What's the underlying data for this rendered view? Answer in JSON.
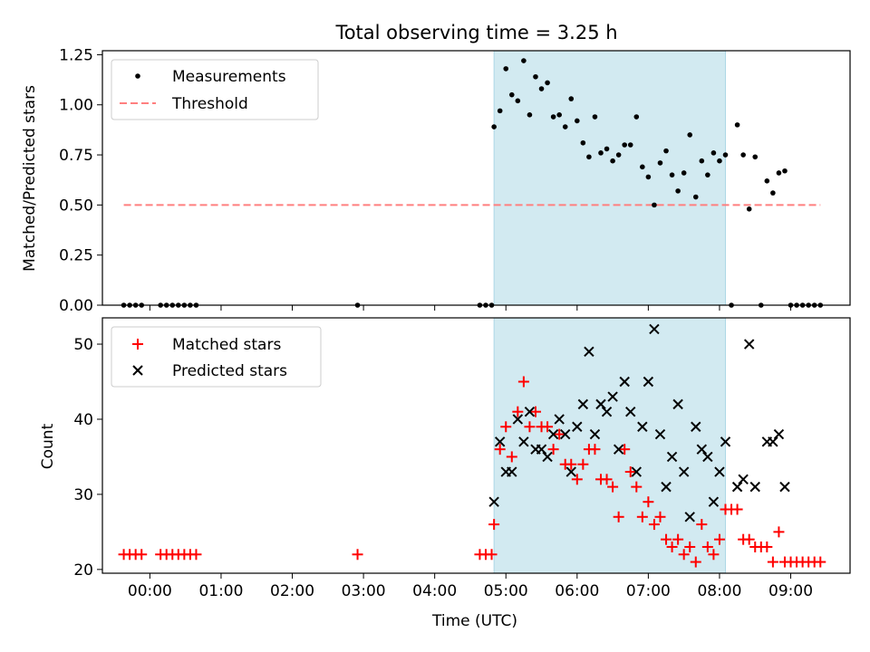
{
  "chart_data": [
    {
      "type": "scatter",
      "title": "Total observing time = 3.25 h",
      "xlabel": "",
      "ylabel": "Matched/Predicted stars",
      "xlim": [
        "23:20",
        "09:50"
      ],
      "ylim": [
        0,
        1.27
      ],
      "y_ticks": [
        "0.00",
        "0.25",
        "0.50",
        "0.75",
        "1.00",
        "1.25"
      ],
      "shaded_region": {
        "from": "04:50",
        "to": "08:05",
        "color": "#add8e6"
      },
      "legend": {
        "placement": "top-left",
        "entries": [
          "Measurements",
          "Threshold"
        ]
      },
      "series": [
        {
          "name": "Measurements",
          "marker": "dot",
          "color": "#000000",
          "points": [
            [
              "23:38",
              0
            ],
            [
              "23:43",
              0
            ],
            [
              "23:48",
              0
            ],
            [
              "23:53",
              0
            ],
            [
              "00:09",
              0
            ],
            [
              "00:14",
              0
            ],
            [
              "00:19",
              0
            ],
            [
              "00:24",
              0
            ],
            [
              "00:29",
              0
            ],
            [
              "00:34",
              0
            ],
            [
              "00:39",
              0
            ],
            [
              "02:55",
              0
            ],
            [
              "04:38",
              0
            ],
            [
              "04:43",
              0
            ],
            [
              "04:48",
              0
            ],
            [
              "04:50",
              0.89
            ],
            [
              "04:55",
              0.97
            ],
            [
              "05:00",
              1.18
            ],
            [
              "05:05",
              1.05
            ],
            [
              "05:10",
              1.02
            ],
            [
              "05:15",
              1.22
            ],
            [
              "05:20",
              0.95
            ],
            [
              "05:25",
              1.14
            ],
            [
              "05:30",
              1.08
            ],
            [
              "05:35",
              1.11
            ],
            [
              "05:40",
              0.94
            ],
            [
              "05:45",
              0.95
            ],
            [
              "05:50",
              0.89
            ],
            [
              "05:55",
              1.03
            ],
            [
              "06:00",
              0.92
            ],
            [
              "06:05",
              0.81
            ],
            [
              "06:10",
              0.74
            ],
            [
              "06:15",
              0.94
            ],
            [
              "06:20",
              0.76
            ],
            [
              "06:25",
              0.78
            ],
            [
              "06:30",
              0.72
            ],
            [
              "06:35",
              0.75
            ],
            [
              "06:40",
              0.8
            ],
            [
              "06:45",
              0.8
            ],
            [
              "06:50",
              0.94
            ],
            [
              "06:55",
              0.69
            ],
            [
              "07:00",
              0.64
            ],
            [
              "07:05",
              0.5
            ],
            [
              "07:10",
              0.71
            ],
            [
              "07:15",
              0.77
            ],
            [
              "07:20",
              0.65
            ],
            [
              "07:25",
              0.57
            ],
            [
              "07:30",
              0.66
            ],
            [
              "07:35",
              0.85
            ],
            [
              "07:40",
              0.54
            ],
            [
              "07:45",
              0.72
            ],
            [
              "07:50",
              0.65
            ],
            [
              "07:55",
              0.76
            ],
            [
              "08:00",
              0.72
            ],
            [
              "08:05",
              0.75
            ],
            [
              "08:10",
              0
            ],
            [
              "08:15",
              0.9
            ],
            [
              "08:20",
              0.75
            ],
            [
              "08:25",
              0.48
            ],
            [
              "08:30",
              0.74
            ],
            [
              "08:35",
              0
            ],
            [
              "08:40",
              0.62
            ],
            [
              "08:45",
              0.56
            ],
            [
              "08:50",
              0.66
            ],
            [
              "08:55",
              0.67
            ],
            [
              "09:00",
              0
            ],
            [
              "09:05",
              0
            ],
            [
              "09:10",
              0
            ],
            [
              "09:15",
              0
            ],
            [
              "09:20",
              0
            ],
            [
              "09:25",
              0
            ]
          ]
        },
        {
          "name": "Threshold",
          "marker": "dashed-line",
          "color": "#ff7f7f",
          "points": [
            [
              "23:38",
              0.5
            ],
            [
              "09:25",
              0.5
            ]
          ]
        }
      ]
    },
    {
      "type": "scatter",
      "title": "",
      "xlabel": "Time (UTC)",
      "ylabel": "Count",
      "xlim": [
        "23:20",
        "09:50"
      ],
      "ylim": [
        19.5,
        53.5
      ],
      "y_ticks": [
        "20",
        "30",
        "40",
        "50"
      ],
      "x_ticks": [
        "00:00",
        "01:00",
        "02:00",
        "03:00",
        "04:00",
        "05:00",
        "06:00",
        "07:00",
        "08:00",
        "09:00"
      ],
      "shaded_region": {
        "from": "04:50",
        "to": "08:05",
        "color": "#add8e6"
      },
      "legend": {
        "placement": "top-left",
        "entries": [
          "Matched stars",
          "Predicted stars"
        ]
      },
      "series": [
        {
          "name": "Matched stars",
          "marker": "plus",
          "color": "#ff0000",
          "points": [
            [
              "23:38",
              22
            ],
            [
              "23:43",
              22
            ],
            [
              "23:48",
              22
            ],
            [
              "23:53",
              22
            ],
            [
              "00:09",
              22
            ],
            [
              "00:14",
              22
            ],
            [
              "00:19",
              22
            ],
            [
              "00:24",
              22
            ],
            [
              "00:29",
              22
            ],
            [
              "00:34",
              22
            ],
            [
              "00:39",
              22
            ],
            [
              "02:55",
              22
            ],
            [
              "04:38",
              22
            ],
            [
              "04:43",
              22
            ],
            [
              "04:48",
              22
            ],
            [
              "04:50",
              26
            ],
            [
              "04:55",
              36
            ],
            [
              "05:00",
              39
            ],
            [
              "05:05",
              35
            ],
            [
              "05:10",
              41
            ],
            [
              "05:15",
              45
            ],
            [
              "05:20",
              39
            ],
            [
              "05:25",
              41
            ],
            [
              "05:30",
              39
            ],
            [
              "05:35",
              39
            ],
            [
              "05:40",
              36
            ],
            [
              "05:45",
              38
            ],
            [
              "05:50",
              34
            ],
            [
              "05:55",
              34
            ],
            [
              "06:00",
              32
            ],
            [
              "06:05",
              34
            ],
            [
              "06:10",
              36
            ],
            [
              "06:15",
              36
            ],
            [
              "06:20",
              32
            ],
            [
              "06:25",
              32
            ],
            [
              "06:30",
              31
            ],
            [
              "06:35",
              27
            ],
            [
              "06:40",
              36
            ],
            [
              "06:45",
              33
            ],
            [
              "06:50",
              31
            ],
            [
              "06:55",
              27
            ],
            [
              "07:00",
              29
            ],
            [
              "07:05",
              26
            ],
            [
              "07:10",
              27
            ],
            [
              "07:15",
              24
            ],
            [
              "07:20",
              23
            ],
            [
              "07:25",
              24
            ],
            [
              "07:30",
              22
            ],
            [
              "07:35",
              23
            ],
            [
              "07:40",
              21
            ],
            [
              "07:45",
              26
            ],
            [
              "07:50",
              23
            ],
            [
              "07:55",
              22
            ],
            [
              "08:00",
              24
            ],
            [
              "08:05",
              28
            ],
            [
              "08:10",
              28
            ],
            [
              "08:15",
              28
            ],
            [
              "08:20",
              24
            ],
            [
              "08:25",
              24
            ],
            [
              "08:30",
              23
            ],
            [
              "08:35",
              23
            ],
            [
              "08:40",
              23
            ],
            [
              "08:45",
              21
            ],
            [
              "08:50",
              25
            ],
            [
              "08:55",
              21
            ],
            [
              "09:00",
              21
            ],
            [
              "09:05",
              21
            ],
            [
              "09:10",
              21
            ],
            [
              "09:15",
              21
            ],
            [
              "09:20",
              21
            ],
            [
              "09:25",
              21
            ]
          ]
        },
        {
          "name": "Predicted stars",
          "marker": "x",
          "color": "#000000",
          "points": [
            [
              "04:50",
              29
            ],
            [
              "04:55",
              37
            ],
            [
              "05:00",
              33
            ],
            [
              "05:05",
              33
            ],
            [
              "05:10",
              40
            ],
            [
              "05:15",
              37
            ],
            [
              "05:20",
              41
            ],
            [
              "05:25",
              36
            ],
            [
              "05:30",
              36
            ],
            [
              "05:35",
              35
            ],
            [
              "05:40",
              38
            ],
            [
              "05:45",
              40
            ],
            [
              "05:50",
              38
            ],
            [
              "05:55",
              33
            ],
            [
              "06:00",
              39
            ],
            [
              "06:05",
              42
            ],
            [
              "06:10",
              49
            ],
            [
              "06:15",
              38
            ],
            [
              "06:20",
              42
            ],
            [
              "06:25",
              41
            ],
            [
              "06:30",
              43
            ],
            [
              "06:35",
              36
            ],
            [
              "06:40",
              45
            ],
            [
              "06:45",
              41
            ],
            [
              "06:50",
              33
            ],
            [
              "06:55",
              39
            ],
            [
              "07:00",
              45
            ],
            [
              "07:05",
              52
            ],
            [
              "07:10",
              38
            ],
            [
              "07:15",
              31
            ],
            [
              "07:20",
              35
            ],
            [
              "07:25",
              42
            ],
            [
              "07:30",
              33
            ],
            [
              "07:35",
              27
            ],
            [
              "07:40",
              39
            ],
            [
              "07:45",
              36
            ],
            [
              "07:50",
              35
            ],
            [
              "07:55",
              29
            ],
            [
              "08:00",
              33
            ],
            [
              "08:05",
              37
            ],
            [
              "08:15",
              31
            ],
            [
              "08:20",
              32
            ],
            [
              "08:25",
              50
            ],
            [
              "08:30",
              31
            ],
            [
              "08:40",
              37
            ],
            [
              "08:45",
              37
            ],
            [
              "08:50",
              38
            ],
            [
              "08:55",
              31
            ]
          ]
        }
      ]
    }
  ]
}
